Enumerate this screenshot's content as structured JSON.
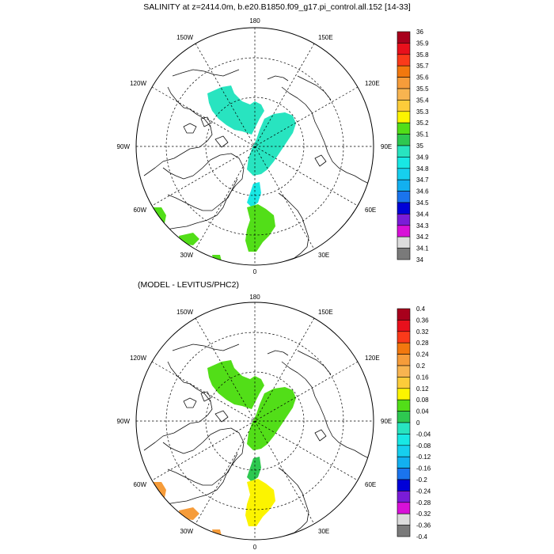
{
  "panels": [
    {
      "title": "SALINITY at z=2414.0m, b.e20.B1850.f09_g17.pi_control.all.152 [14-33]",
      "lon_labels": [
        "180",
        "150E",
        "120E",
        "90E",
        "60E",
        "30E",
        "0",
        "30W",
        "60W",
        "90W",
        "120W",
        "150W"
      ],
      "colorbar": {
        "labels": [
          "36",
          "35.9",
          "35.8",
          "35.7",
          "35.6",
          "35.5",
          "35.4",
          "35.3",
          "35.2",
          "35.1",
          "35",
          "34.9",
          "34.8",
          "34.7",
          "34.6",
          "34.5",
          "34.4",
          "34.3",
          "34.2",
          "34.1",
          "34"
        ],
        "colors": [
          "#a8001c",
          "#e8101c",
          "#fa3a1a",
          "#f2780e",
          "#f69c3a",
          "#f8b450",
          "#fccc3a",
          "#fcf400",
          "#52de18",
          "#2ec850",
          "#28e4c0",
          "#18e8e4",
          "#16cfee",
          "#12b0f0",
          "#1a74ee",
          "#0000d8",
          "#7a1cd8",
          "#d810d8",
          "#dcdcdc",
          "#7a7a7a"
        ]
      },
      "patch_colors": {
        "pacific_side": "#28e4c0",
        "atlantic_side": "#52de18",
        "strait": "#18e8e4",
        "outer": "#52de18"
      }
    },
    {
      "title": "(MODEL - LEVITUS/PHC2)",
      "lon_labels": [
        "180",
        "150E",
        "120E",
        "90E",
        "60E",
        "30E",
        "0",
        "30W",
        "60W",
        "90W",
        "120W",
        "150W"
      ],
      "colorbar": {
        "labels": [
          "0.4",
          "0.36",
          "0.32",
          "0.28",
          "0.24",
          "0.2",
          "0.16",
          "0.12",
          "0.08",
          "0.04",
          "0",
          "-0.04",
          "-0.08",
          "-0.12",
          "-0.16",
          "-0.2",
          "-0.24",
          "-0.28",
          "-0.32",
          "-0.36",
          "-0.4"
        ],
        "colors": [
          "#a8001c",
          "#e8101c",
          "#fa3a1a",
          "#f2780e",
          "#f69c3a",
          "#f8b450",
          "#fccc3a",
          "#fcf400",
          "#52de18",
          "#2ec850",
          "#28e4c0",
          "#18e8e4",
          "#16cfee",
          "#12b0f0",
          "#1a74ee",
          "#0000d8",
          "#7a1cd8",
          "#d810d8",
          "#dcdcdc",
          "#7a7a7a"
        ]
      },
      "patch_colors": {
        "pacific_side": "#52de18",
        "atlantic_side": "#fcf400",
        "strait": "#2ec850",
        "outer": "#f69c3a"
      }
    }
  ]
}
